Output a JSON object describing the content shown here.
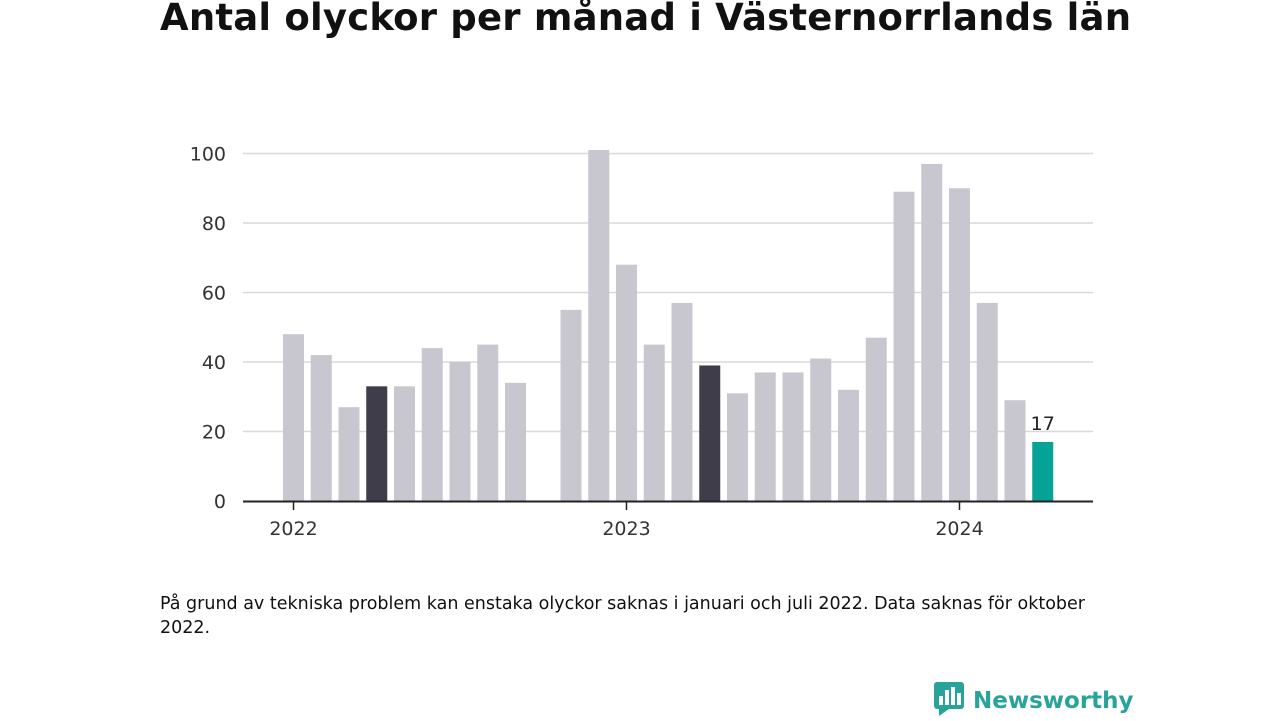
{
  "title": "Antal olyckor per månad i Västernorrlands län",
  "note": "På grund av tekniska problem kan enstaka olyckor saknas i januari och juli 2022. Data saknas för oktober 2022.",
  "brand": {
    "name": "Newsworthy",
    "icon": "newsworthy-logo-icon",
    "color": "#27a39a"
  },
  "colors": {
    "default": "#c8c7cf",
    "highlight": "#3f3d4a",
    "current": "#06a197",
    "grid": "#d9d9d9",
    "axis": "#222222"
  },
  "chart_data": {
    "type": "bar",
    "title": "Antal olyckor per månad i Västernorrlands län",
    "xlabel": "",
    "ylabel": "",
    "ylim": [
      0,
      100
    ],
    "yticks": [
      0,
      20,
      40,
      60,
      80,
      100
    ],
    "grid": true,
    "xtick_labels": [
      {
        "label": "2022",
        "month": "2022-01"
      },
      {
        "label": "2023",
        "month": "2023-01"
      },
      {
        "label": "2024",
        "month": "2024-01"
      }
    ],
    "categories": [
      "2022-01",
      "2022-02",
      "2022-03",
      "2022-04",
      "2022-05",
      "2022-06",
      "2022-07",
      "2022-08",
      "2022-09",
      "2022-10",
      "2022-11",
      "2022-12",
      "2023-01",
      "2023-02",
      "2023-03",
      "2023-04",
      "2023-05",
      "2023-06",
      "2023-07",
      "2023-08",
      "2023-09",
      "2023-10",
      "2023-11",
      "2023-12",
      "2024-01",
      "2024-02",
      "2024-03",
      "2024-04"
    ],
    "values": [
      48,
      42,
      27,
      33,
      33,
      44,
      40,
      45,
      34,
      null,
      55,
      101,
      68,
      45,
      57,
      39,
      31,
      37,
      37,
      41,
      32,
      47,
      89,
      97,
      90,
      57,
      29,
      17
    ],
    "highlight": [
      "2022-04",
      "2023-04"
    ],
    "current": "2024-04",
    "data_labels": [
      {
        "month": "2024-04",
        "label": "17"
      }
    ]
  }
}
